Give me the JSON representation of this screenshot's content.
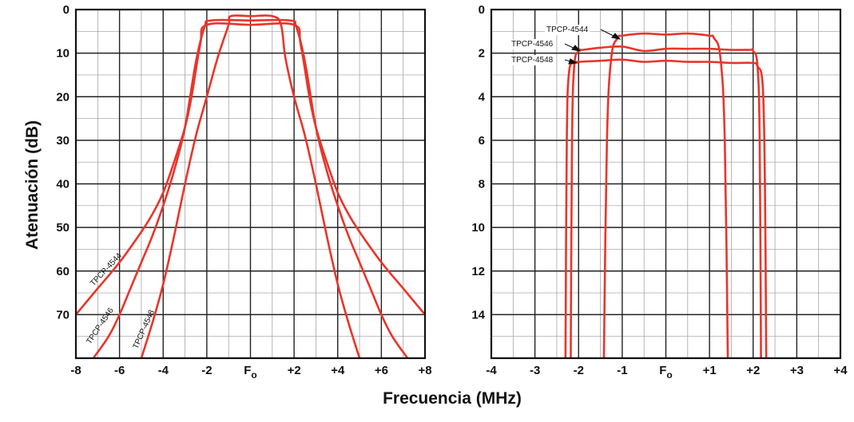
{
  "chart_data": [
    {
      "type": "line",
      "name": "wide",
      "xlabel": "",
      "ylabel": "Atenuación (dB)",
      "xlim": [
        -8,
        8
      ],
      "ylim": [
        80,
        0
      ],
      "y_axis_inverted": true,
      "grid": true,
      "x_ticks": [
        -8,
        -6,
        -4,
        -2,
        0,
        2,
        4,
        6,
        8
      ],
      "x_tick_labels": [
        "-8",
        "-6",
        "-4",
        "-2",
        "F",
        "+2",
        "+4",
        "+6",
        "+8"
      ],
      "y_ticks": [
        0,
        10,
        20,
        30,
        40,
        50,
        60,
        70
      ],
      "y_tick_labels": [
        "0",
        "10",
        "20",
        "30",
        "40",
        "50",
        "60",
        "70"
      ],
      "series": [
        {
          "name": "TPCP-4544",
          "x": [
            -8,
            -7,
            -6,
            -5,
            -4.5,
            -4,
            -3.5,
            -3,
            -2.7,
            -2.3,
            -2,
            0,
            2,
            2.3,
            2.7,
            3,
            3.5,
            4,
            4.5,
            5,
            6,
            7,
            8
          ],
          "y": [
            70,
            64,
            58,
            51,
            47,
            42,
            35,
            27,
            20,
            8,
            3.5,
            3.5,
            3.5,
            8,
            20,
            27,
            35,
            42,
            47,
            51,
            58,
            64,
            70
          ]
        },
        {
          "name": "TPCP-4546",
          "x": [
            -7.2,
            -6.5,
            -6,
            -5.5,
            -5,
            -4.5,
            -4,
            -3.5,
            -3,
            -2.5,
            -2.1,
            -1.8,
            0,
            1.8,
            2.1,
            2.5,
            3,
            3.5,
            4,
            4.5,
            5,
            5.5,
            6,
            6.5,
            7.2
          ],
          "y": [
            80,
            75,
            70,
            64,
            58,
            52,
            45,
            37,
            27,
            12,
            4,
            2.5,
            2.5,
            2.5,
            4,
            12,
            27,
            37,
            45,
            52,
            58,
            64,
            70,
            75,
            80
          ]
        },
        {
          "name": "TPCP-4548",
          "x": [
            -5,
            -4.5,
            -4,
            -3.5,
            -3,
            -2.5,
            -2,
            -1.5,
            -1,
            -0.9,
            0,
            1,
            1.4,
            1.6,
            2,
            2.5,
            3,
            3.5,
            4,
            4.5,
            5
          ],
          "y": [
            80,
            72,
            63,
            52,
            40,
            29,
            20,
            11,
            3.5,
            1.5,
            1.5,
            1.5,
            3.5,
            11,
            20,
            29,
            40,
            52,
            63,
            72,
            80
          ]
        }
      ],
      "annotations": [
        "TPCP-4544",
        "TPCP-4546",
        "TPCP-4548"
      ]
    },
    {
      "type": "line",
      "name": "narrow",
      "xlabel": "",
      "ylabel": "",
      "xlim": [
        -4,
        4
      ],
      "ylim": [
        16,
        0
      ],
      "y_axis_inverted": true,
      "grid": true,
      "x_ticks": [
        -4,
        -3,
        -2,
        -1,
        0,
        1,
        2,
        3,
        4
      ],
      "x_tick_labels": [
        "-4",
        "-3",
        "-2",
        "-1",
        "F",
        "+1",
        "+2",
        "+3",
        "+4"
      ],
      "y_ticks": [
        0,
        2,
        4,
        6,
        8,
        10,
        12,
        14
      ],
      "y_tick_labels": [
        "0",
        "2",
        "4",
        "6",
        "8",
        "10",
        "12",
        "14"
      ],
      "series": [
        {
          "name": "TPCP-4544",
          "x": [
            -1.42,
            -1.35,
            -1.25,
            -1.1,
            -1.0,
            -0.5,
            0,
            0.5,
            1.0,
            1.1,
            1.25,
            1.35,
            1.42
          ],
          "y": [
            16,
            6,
            2.2,
            1.3,
            1.2,
            1.1,
            1.15,
            1.1,
            1.2,
            1.3,
            2.2,
            6,
            16
          ],
          "approx_note": null
        },
        {
          "name": "TPCP-4546",
          "x": [
            -2.18,
            -2.15,
            -2.1,
            -2.0,
            -1.9,
            -1.5,
            -1.0,
            -0.5,
            0,
            0.5,
            1.0,
            1.5,
            1.9,
            2.0,
            2.1,
            2.15,
            2.18
          ],
          "y": [
            16,
            6,
            2.6,
            1.9,
            1.85,
            1.75,
            1.7,
            1.9,
            1.8,
            1.8,
            1.8,
            1.85,
            1.85,
            1.9,
            2.6,
            6,
            16
          ]
        },
        {
          "name": "TPCP-4548",
          "x": [
            -2.3,
            -2.27,
            -2.22,
            -2.1,
            -2.0,
            -1.5,
            -1.0,
            -0.5,
            0,
            0.5,
            1.0,
            1.5,
            2.0,
            2.1,
            2.22,
            2.27,
            2.3
          ],
          "y": [
            16,
            6,
            2.9,
            2.45,
            2.4,
            2.35,
            2.3,
            2.4,
            2.35,
            2.4,
            2.4,
            2.45,
            2.45,
            2.6,
            3.5,
            8,
            16
          ]
        }
      ],
      "annotations": [
        "TPCP-4544",
        "TPCP-4546",
        "TPCP-4548"
      ]
    }
  ],
  "fo_subscript": "o",
  "shared_xlabel": "Frecuencia (MHz)",
  "curve_color": "#e8352b"
}
